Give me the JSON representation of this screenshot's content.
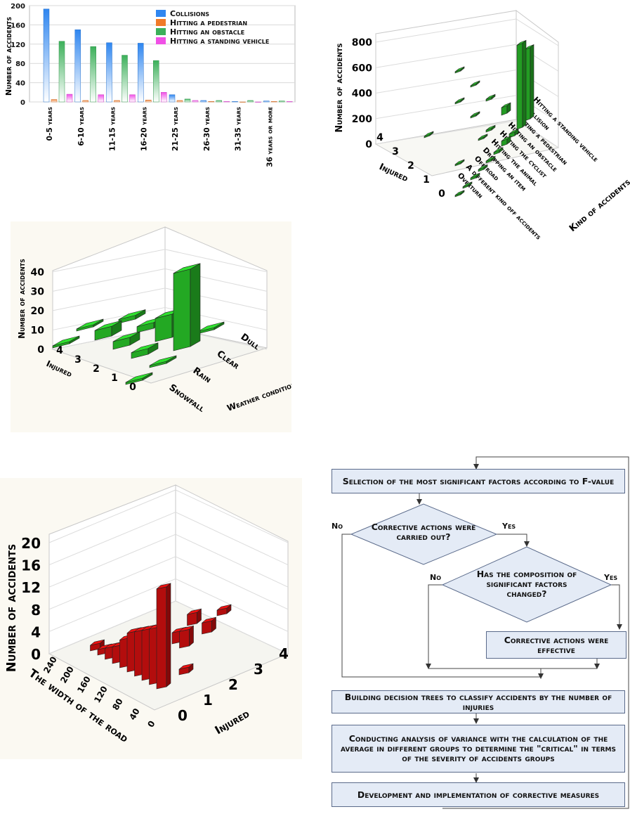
{
  "chart_data": [
    {
      "type": "bar",
      "ylabel": "Number of accidents",
      "ylim": [
        0,
        200
      ],
      "yticks": [
        0,
        40,
        80,
        120,
        160,
        200
      ],
      "categories": [
        "0-5 years",
        "6-10 years",
        "11-15 years",
        "16-20 years",
        "21-25 years",
        "26-30 years",
        "31-35 years",
        "36 years or more"
      ],
      "series": [
        {
          "name": "Collisions",
          "color": "#2f86f0",
          "values": [
            193,
            150,
            123,
            122,
            15,
            3,
            1,
            2
          ]
        },
        {
          "name": "Hitting a pedestrian",
          "color": "#f07a28",
          "values": [
            5,
            3,
            3,
            4,
            3,
            1,
            0,
            1
          ]
        },
        {
          "name": "Hitting an obstacle",
          "color": "#3cb05a",
          "values": [
            126,
            115,
            97,
            86,
            6,
            3,
            3,
            2
          ]
        },
        {
          "name": "Hitting a standing vehicle",
          "color": "#f050e6",
          "values": [
            16,
            15,
            15,
            20,
            3,
            1,
            0,
            1
          ]
        }
      ],
      "legend": "top-right",
      "grid": true
    },
    {
      "type": "bar3d",
      "zlabel": "Number of accidents",
      "zticks": [
        0,
        200,
        400,
        600,
        800
      ],
      "zlim": [
        0,
        800
      ],
      "xlabel": "Injured",
      "xcategories": [
        "4",
        "3",
        "2",
        "1",
        "0"
      ],
      "ylabel": "Kind of accidents",
      "ycategories": [
        "Overturn",
        "A different kind off accidents",
        "Off road",
        "Dropping an item",
        "Hitting the animal",
        "Hitting the cyclist",
        "Hitting an obstacle",
        "Hitting a pedestrian",
        "Collision",
        "Hitting a standing vehicle"
      ],
      "bars": [
        {
          "injured": "0",
          "kind": "Overturn",
          "value": 12
        },
        {
          "injured": "0",
          "kind": "A different kind off accidents",
          "value": 12
        },
        {
          "injured": "0",
          "kind": "Off road",
          "value": 15
        },
        {
          "injured": "0",
          "kind": "Dropping an item",
          "value": 15
        },
        {
          "injured": "0",
          "kind": "Hitting the animal",
          "value": 15
        },
        {
          "injured": "0",
          "kind": "Hitting the cyclist",
          "value": 18
        },
        {
          "injured": "0",
          "kind": "Hitting an obstacle",
          "value": 40
        },
        {
          "injured": "0",
          "kind": "Hitting a pedestrian",
          "value": 30
        },
        {
          "injured": "0",
          "kind": "Collision",
          "value": 660
        },
        {
          "injured": "0",
          "kind": "Hitting a standing vehicle",
          "value": 560
        },
        {
          "injured": "1",
          "kind": "Hitting an obstacle",
          "value": 15
        },
        {
          "injured": "1",
          "kind": "Hitting the cyclist",
          "value": 12
        },
        {
          "injured": "1",
          "kind": "Off road",
          "value": 10
        },
        {
          "injured": "1",
          "kind": "Collision",
          "value": 60
        },
        {
          "injured": "2",
          "kind": "Collision",
          "value": 15
        },
        {
          "injured": "2",
          "kind": "Hitting an obstacle",
          "value": 12
        },
        {
          "injured": "3",
          "kind": "Collision",
          "value": 10
        },
        {
          "injured": "3",
          "kind": "Hitting an obstacle",
          "value": 8
        },
        {
          "injured": "3",
          "kind": "Off road",
          "value": 8
        },
        {
          "injured": "4",
          "kind": "Collision",
          "value": 6
        }
      ],
      "grid": true
    },
    {
      "type": "bar3d",
      "zlabel": "Number of accidents",
      "zticks": [
        0,
        10,
        20,
        30,
        40
      ],
      "zlim": [
        0,
        45
      ],
      "xlabel": "Injured",
      "xcategories": [
        "4",
        "3",
        "2",
        "1",
        "0"
      ],
      "ylabel": "Weather conditions",
      "ycategories": [
        "Snowfall",
        "Rain",
        "Clear",
        "Dull"
      ],
      "bars": [
        {
          "injured": "0",
          "weather": "Snowfall",
          "value": 1
        },
        {
          "injured": "0",
          "weather": "Rain",
          "value": 1
        },
        {
          "injured": "0",
          "weather": "Clear",
          "value": 40
        },
        {
          "injured": "0",
          "weather": "Dull",
          "value": 1
        },
        {
          "injured": "1",
          "weather": "Clear",
          "value": 12
        },
        {
          "injured": "1",
          "weather": "Rain",
          "value": 3
        },
        {
          "injured": "2",
          "weather": "Rain",
          "value": 4
        },
        {
          "injured": "2",
          "weather": "Clear",
          "value": 3
        },
        {
          "injured": "3",
          "weather": "Rain",
          "value": 5
        },
        {
          "injured": "3",
          "weather": "Clear",
          "value": 2
        },
        {
          "injured": "4",
          "weather": "Rain",
          "value": 1
        },
        {
          "injured": "4",
          "weather": "Snowfall",
          "value": 1
        }
      ],
      "grid": true
    },
    {
      "type": "bar3d",
      "zlabel": "Number of accidents",
      "zticks": [
        0,
        4,
        8,
        12,
        16,
        20
      ],
      "zlim": [
        0,
        20
      ],
      "xlabel": "The width of the road",
      "xticks": [
        "240",
        "200",
        "160",
        "120",
        "80",
        "40",
        "0"
      ],
      "ylabel": "Injured",
      "yticks": [
        "0",
        "1",
        "2",
        "3",
        "4"
      ],
      "bars": [
        {
          "injured": "0",
          "width": 40,
          "value": 18
        },
        {
          "injured": "0",
          "width": 60,
          "value": 10
        },
        {
          "injured": "0",
          "width": 80,
          "value": 9
        },
        {
          "injured": "0",
          "width": 100,
          "value": 8
        },
        {
          "injured": "0",
          "width": 120,
          "value": 7
        },
        {
          "injured": "0",
          "width": 140,
          "value": 5
        },
        {
          "injured": "0",
          "width": 160,
          "value": 3
        },
        {
          "injured": "0",
          "width": 180,
          "value": 2
        },
        {
          "injured": "0",
          "width": 200,
          "value": 1
        },
        {
          "injured": "0",
          "width": 220,
          "value": 1
        },
        {
          "injured": "1",
          "width": 40,
          "value": 1
        },
        {
          "injured": "2",
          "width": 100,
          "value": 3
        },
        {
          "injured": "2",
          "width": 120,
          "value": 2
        },
        {
          "injured": "3",
          "width": 100,
          "value": 2
        },
        {
          "injured": "3",
          "width": 140,
          "value": 2
        },
        {
          "injured": "4",
          "width": 120,
          "value": 1
        }
      ],
      "grid": true
    }
  ],
  "flowchart": {
    "box1": "Selection of the most significant factors according to F-value",
    "diamond1": "Corrective actions were carried out?",
    "diamond1_no": "No",
    "diamond1_yes": "Yes",
    "diamond2": "Has the composition of significant factors changed?",
    "diamond2_no": "No",
    "diamond2_yes": "Yes",
    "box2": "Corrective actions were effective",
    "box3": "Building decision trees to classify accidents by the number of injuries",
    "box4": "Conducting analysis of variance with the calculation of the average in different groups to determine the \"critical\" in terms of the severity of accidents groups",
    "box5": "Development and implementation of corrective measures"
  }
}
